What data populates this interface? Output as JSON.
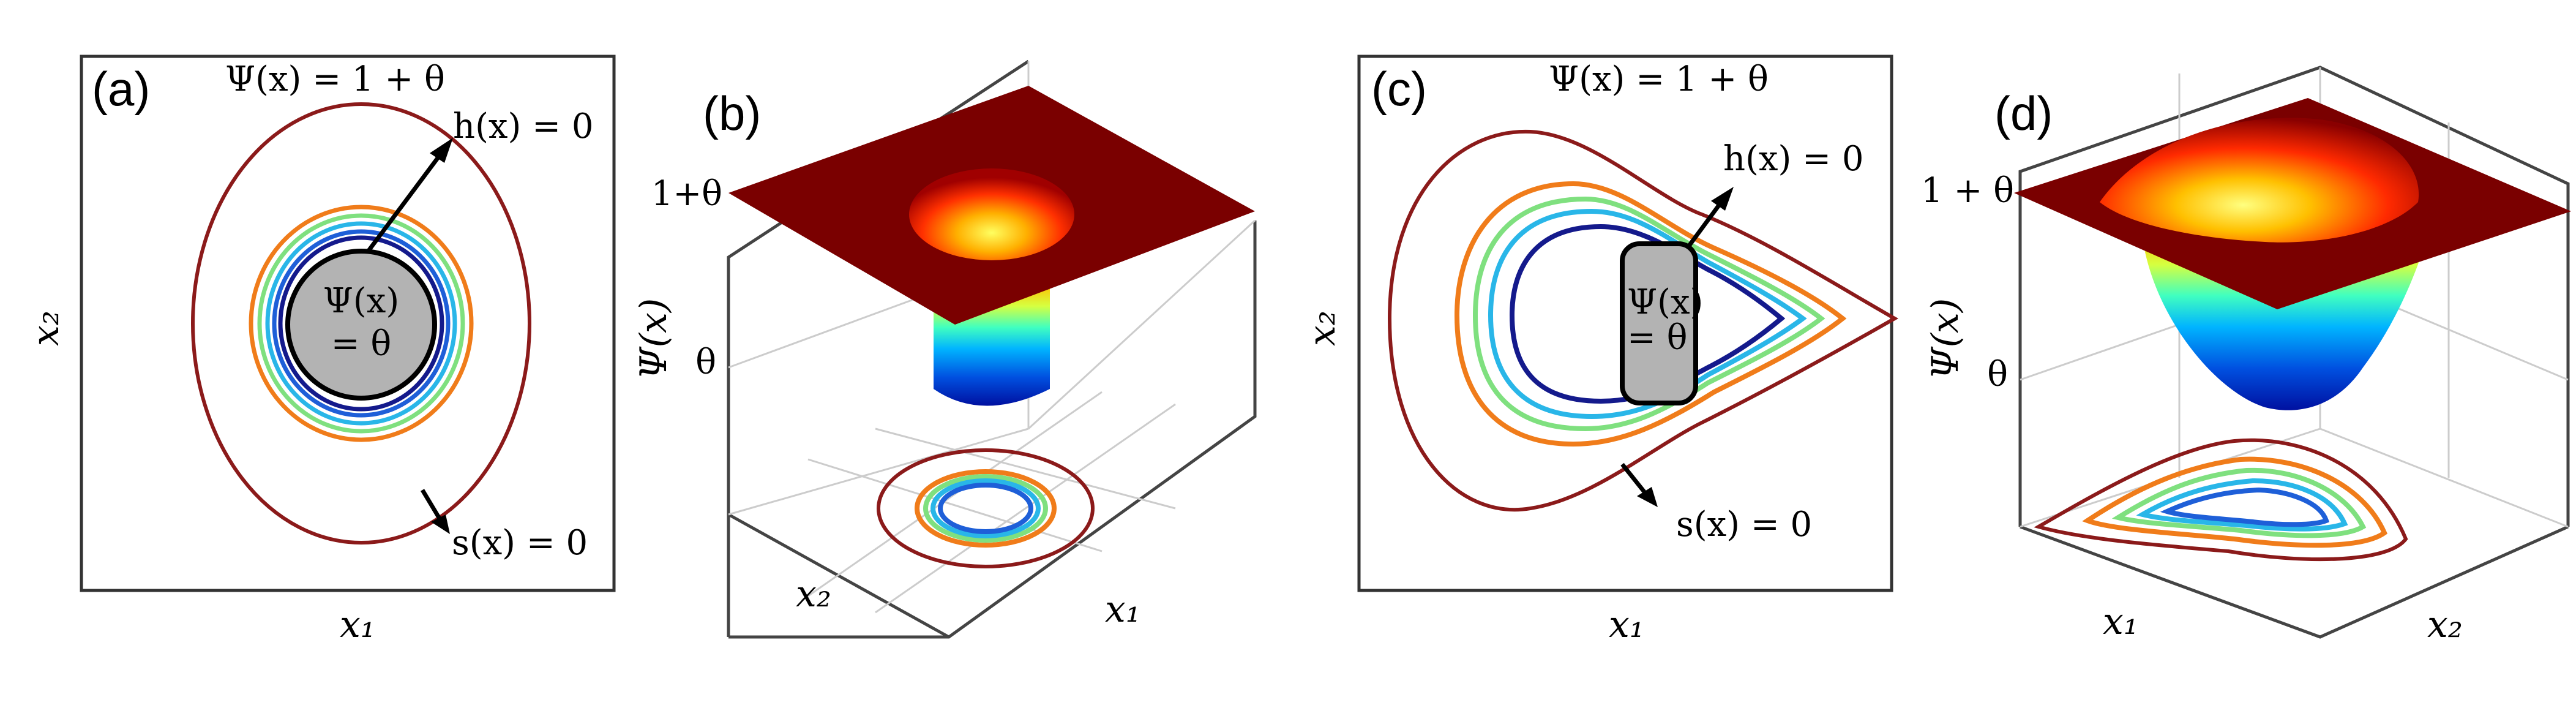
{
  "panels": {
    "a": {
      "label": "(a)",
      "top_label": "Ψ(x) = 1 + θ",
      "h_label": "h(x) = 0",
      "s_label": "s(x) = 0",
      "core_line1": "Ψ(x)",
      "core_line2": "= θ",
      "xlabel": "x₁",
      "ylabel": "x₂"
    },
    "b": {
      "label": "(b)",
      "tick_top": "1+θ",
      "tick_mid": "θ",
      "zlabel": "Ψ(x)",
      "x1label": "x₁",
      "x2label": "x₂"
    },
    "c": {
      "label": "(c)",
      "top_label": "Ψ(x) = 1 + θ",
      "h_label": "h(x) = 0",
      "s_label": "s(x) = 0",
      "core_line1": "Ψ(x)",
      "core_line2": "= θ",
      "xlabel": "x₁",
      "ylabel": "x₂"
    },
    "d": {
      "label": "(d)",
      "tick_top": "1 + θ",
      "tick_mid": "θ",
      "zlabel": "Ψ(x)",
      "x1label": "x₁",
      "x2label": "x₂"
    }
  },
  "colors": {
    "level_outer": "#8b1a1a",
    "level_orange": "#f07c1a",
    "level_green": "#7fe07f",
    "level_cyan": "#29b6e8",
    "level_blue": "#1e5fd8",
    "level_navy": "#141a8c",
    "obstacle_fill": "#b3b3b3",
    "plane": "#7a0000"
  }
}
